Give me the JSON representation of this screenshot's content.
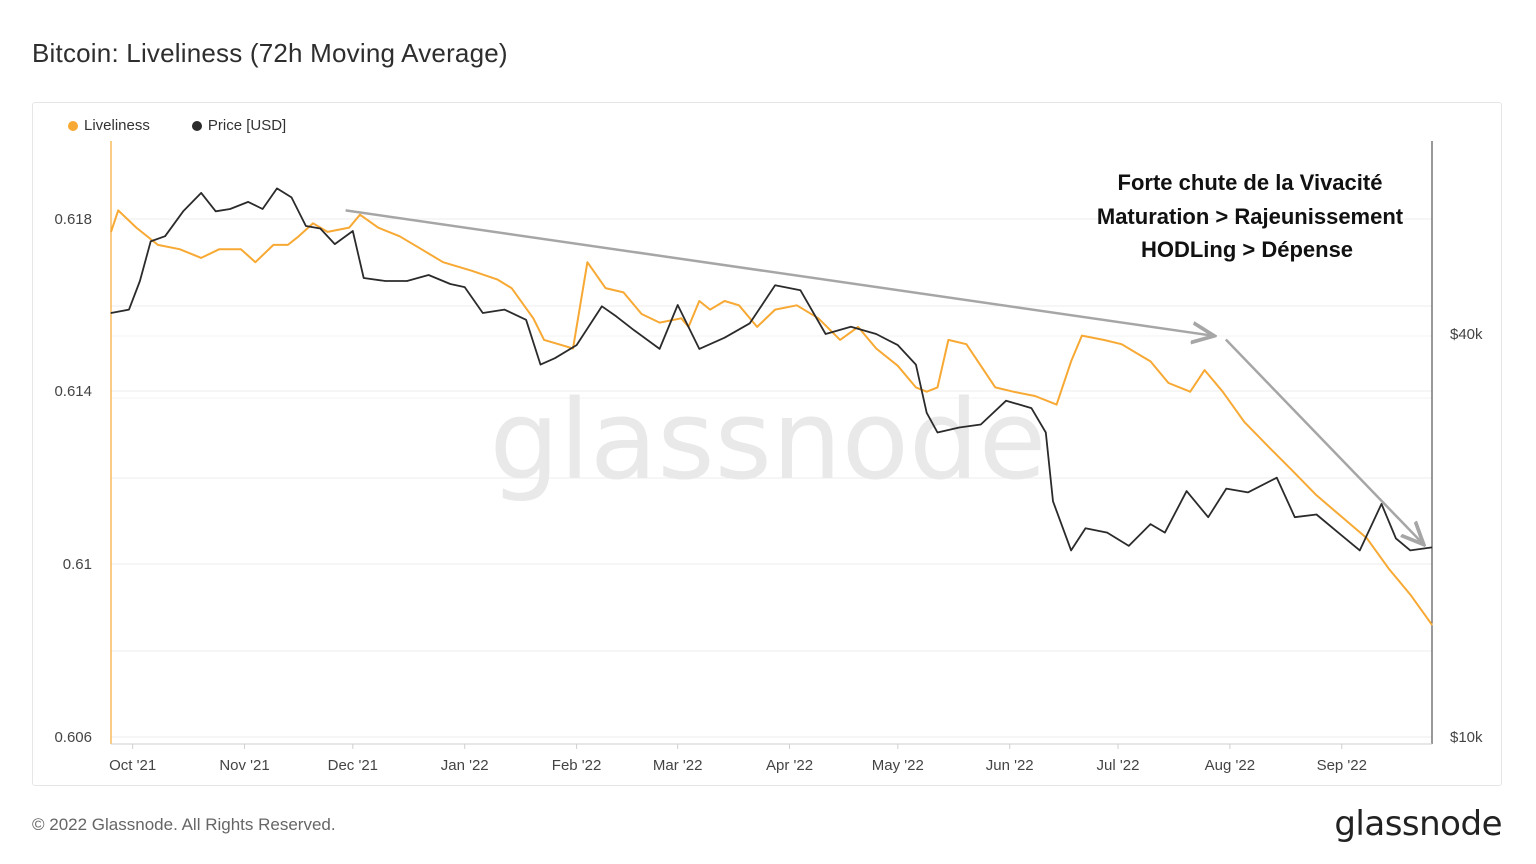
{
  "page": {
    "title": "Bitcoin: Liveliness (72h Moving Average)",
    "copyright": "© 2022 Glassnode. All Rights Reserved.",
    "brand": "glassnode",
    "watermark": "glassnode"
  },
  "colors": {
    "liveliness": "#f7a934",
    "price": "#2b2b2b",
    "trend_arrow": "#a6a6a6"
  },
  "chart_data": {
    "type": "line",
    "title": "Bitcoin: Liveliness (72h Moving Average)",
    "legend_position": "top-left",
    "grid": true,
    "x_ticks": [
      "Oct '21",
      "Nov '21",
      "Dec '21",
      "Jan '22",
      "Feb '22",
      "Mar '22",
      "Apr '22",
      "May '22",
      "Jun '22",
      "Jul '22",
      "Aug '22",
      "Sep '22"
    ],
    "x_range": [
      "2021-09-25",
      "2022-09-26"
    ],
    "y_left": {
      "label": "",
      "ticks": [
        "0.606",
        "0.61",
        "0.614",
        "0.618"
      ],
      "range": [
        0.606,
        0.6198
      ]
    },
    "y_right": {
      "label": "",
      "ticks": [
        "$10k",
        "$40k"
      ],
      "scale": "log",
      "range": [
        10000,
        69000
      ]
    },
    "series": [
      {
        "name": "Liveliness",
        "axis": "left",
        "points": [
          [
            "2021-09-25",
            0.6177
          ],
          [
            "2021-09-27",
            0.6182
          ],
          [
            "2021-10-02",
            0.6178
          ],
          [
            "2021-10-08",
            0.6174
          ],
          [
            "2021-10-14",
            0.6173
          ],
          [
            "2021-10-20",
            0.6171
          ],
          [
            "2021-10-25",
            0.6173
          ],
          [
            "2021-10-31",
            0.6173
          ],
          [
            "2021-11-04",
            0.617
          ],
          [
            "2021-11-09",
            0.6174
          ],
          [
            "2021-11-13",
            0.6174
          ],
          [
            "2021-11-16",
            0.6176
          ],
          [
            "2021-11-20",
            0.6179
          ],
          [
            "2021-11-24",
            0.6177
          ],
          [
            "2021-11-30",
            0.6178
          ],
          [
            "2021-12-03",
            0.6181
          ],
          [
            "2021-12-08",
            0.6178
          ],
          [
            "2021-12-14",
            0.6176
          ],
          [
            "2021-12-20",
            0.6173
          ],
          [
            "2021-12-26",
            0.617
          ],
          [
            "2022-01-03",
            0.6168
          ],
          [
            "2022-01-10",
            0.6166
          ],
          [
            "2022-01-14",
            0.6164
          ],
          [
            "2022-01-20",
            0.6157
          ],
          [
            "2022-01-23",
            0.6152
          ],
          [
            "2022-01-27",
            0.6151
          ],
          [
            "2022-01-31",
            0.615
          ],
          [
            "2022-02-04",
            0.617
          ],
          [
            "2022-02-09",
            0.6164
          ],
          [
            "2022-02-14",
            0.6163
          ],
          [
            "2022-02-19",
            0.6158
          ],
          [
            "2022-02-24",
            0.6156
          ],
          [
            "2022-03-02",
            0.6157
          ],
          [
            "2022-03-04",
            0.6155
          ],
          [
            "2022-03-07",
            0.6161
          ],
          [
            "2022-03-10",
            0.6159
          ],
          [
            "2022-03-14",
            0.6161
          ],
          [
            "2022-03-18",
            0.616
          ],
          [
            "2022-03-23",
            0.6155
          ],
          [
            "2022-03-28",
            0.6159
          ],
          [
            "2022-04-03",
            0.616
          ],
          [
            "2022-04-09",
            0.6157
          ],
          [
            "2022-04-15",
            0.6152
          ],
          [
            "2022-04-20",
            0.6155
          ],
          [
            "2022-04-25",
            0.615
          ],
          [
            "2022-05-01",
            0.6146
          ],
          [
            "2022-05-06",
            0.6141
          ],
          [
            "2022-05-09",
            0.614
          ],
          [
            "2022-05-12",
            0.6141
          ],
          [
            "2022-05-15",
            0.6152
          ],
          [
            "2022-05-20",
            0.6151
          ],
          [
            "2022-05-28",
            0.6141
          ],
          [
            "2022-06-02",
            0.614
          ],
          [
            "2022-06-08",
            0.6139
          ],
          [
            "2022-06-14",
            0.6137
          ],
          [
            "2022-06-18",
            0.6147
          ],
          [
            "2022-06-21",
            0.6153
          ],
          [
            "2022-06-27",
            0.6152
          ],
          [
            "2022-07-02",
            0.6151
          ],
          [
            "2022-07-10",
            0.6147
          ],
          [
            "2022-07-15",
            0.6142
          ],
          [
            "2022-07-21",
            0.614
          ],
          [
            "2022-07-25",
            0.6145
          ],
          [
            "2022-07-30",
            0.614
          ],
          [
            "2022-08-05",
            0.6133
          ],
          [
            "2022-08-12",
            0.6127
          ],
          [
            "2022-08-18",
            0.6122
          ],
          [
            "2022-08-25",
            0.6116
          ],
          [
            "2022-09-01",
            0.6111
          ],
          [
            "2022-09-08",
            0.6106
          ],
          [
            "2022-09-14",
            0.6099
          ],
          [
            "2022-09-20",
            0.6093
          ],
          [
            "2022-09-26",
            0.6086
          ]
        ]
      },
      {
        "name": "Price [USD]",
        "axis": "right",
        "points": [
          [
            "2021-09-25",
            43000
          ],
          [
            "2021-09-30",
            43500
          ],
          [
            "2021-10-03",
            48000
          ],
          [
            "2021-10-06",
            55000
          ],
          [
            "2021-10-10",
            56000
          ],
          [
            "2021-10-15",
            61000
          ],
          [
            "2021-10-20",
            65000
          ],
          [
            "2021-10-24",
            61000
          ],
          [
            "2021-10-28",
            61500
          ],
          [
            "2021-11-02",
            63000
          ],
          [
            "2021-11-06",
            61500
          ],
          [
            "2021-11-10",
            66000
          ],
          [
            "2021-11-14",
            64000
          ],
          [
            "2021-11-18",
            58000
          ],
          [
            "2021-11-22",
            57500
          ],
          [
            "2021-11-26",
            54500
          ],
          [
            "2021-12-01",
            57000
          ],
          [
            "2021-12-04",
            48500
          ],
          [
            "2021-12-10",
            48000
          ],
          [
            "2021-12-16",
            48000
          ],
          [
            "2021-12-22",
            49000
          ],
          [
            "2021-12-28",
            47500
          ],
          [
            "2022-01-01",
            47000
          ],
          [
            "2022-01-06",
            43000
          ],
          [
            "2022-01-12",
            43500
          ],
          [
            "2022-01-18",
            42000
          ],
          [
            "2022-01-22",
            36000
          ],
          [
            "2022-01-26",
            36800
          ],
          [
            "2022-02-01",
            38500
          ],
          [
            "2022-02-08",
            44000
          ],
          [
            "2022-02-12",
            42500
          ],
          [
            "2022-02-17",
            40500
          ],
          [
            "2022-02-24",
            38000
          ],
          [
            "2022-03-01",
            44200
          ],
          [
            "2022-03-07",
            38000
          ],
          [
            "2022-03-14",
            39500
          ],
          [
            "2022-03-21",
            41500
          ],
          [
            "2022-03-28",
            47300
          ],
          [
            "2022-04-04",
            46500
          ],
          [
            "2022-04-11",
            40000
          ],
          [
            "2022-04-18",
            41000
          ],
          [
            "2022-04-25",
            40000
          ],
          [
            "2022-05-01",
            38500
          ],
          [
            "2022-05-06",
            36000
          ],
          [
            "2022-05-09",
            30500
          ],
          [
            "2022-05-12",
            28500
          ],
          [
            "2022-05-18",
            29000
          ],
          [
            "2022-05-24",
            29300
          ],
          [
            "2022-05-31",
            31800
          ],
          [
            "2022-06-07",
            31000
          ],
          [
            "2022-06-11",
            28500
          ],
          [
            "2022-06-13",
            22500
          ],
          [
            "2022-06-18",
            19000
          ],
          [
            "2022-06-22",
            20500
          ],
          [
            "2022-06-28",
            20200
          ],
          [
            "2022-07-04",
            19300
          ],
          [
            "2022-07-10",
            20800
          ],
          [
            "2022-07-14",
            20200
          ],
          [
            "2022-07-20",
            23300
          ],
          [
            "2022-07-26",
            21300
          ],
          [
            "2022-07-31",
            23500
          ],
          [
            "2022-08-06",
            23200
          ],
          [
            "2022-08-14",
            24400
          ],
          [
            "2022-08-19",
            21300
          ],
          [
            "2022-08-25",
            21500
          ],
          [
            "2022-08-31",
            20200
          ],
          [
            "2022-09-06",
            19000
          ],
          [
            "2022-09-12",
            22300
          ],
          [
            "2022-09-16",
            19800
          ],
          [
            "2022-09-20",
            19000
          ],
          [
            "2022-09-26",
            19200
          ]
        ]
      }
    ],
    "annotation": {
      "lines": [
        "Forte chute de la Vivacité",
        "Maturation > Rajeunissement",
        "HODLing > Dépense"
      ],
      "trend_arrows": [
        {
          "from": [
            "2021-11-29",
            0.6182
          ],
          "to": [
            "2022-07-27",
            0.6153
          ]
        },
        {
          "from": [
            "2022-07-27",
            0.6153
          ],
          "to": [
            "2022-09-26",
            0.6105
          ]
        }
      ]
    }
  }
}
